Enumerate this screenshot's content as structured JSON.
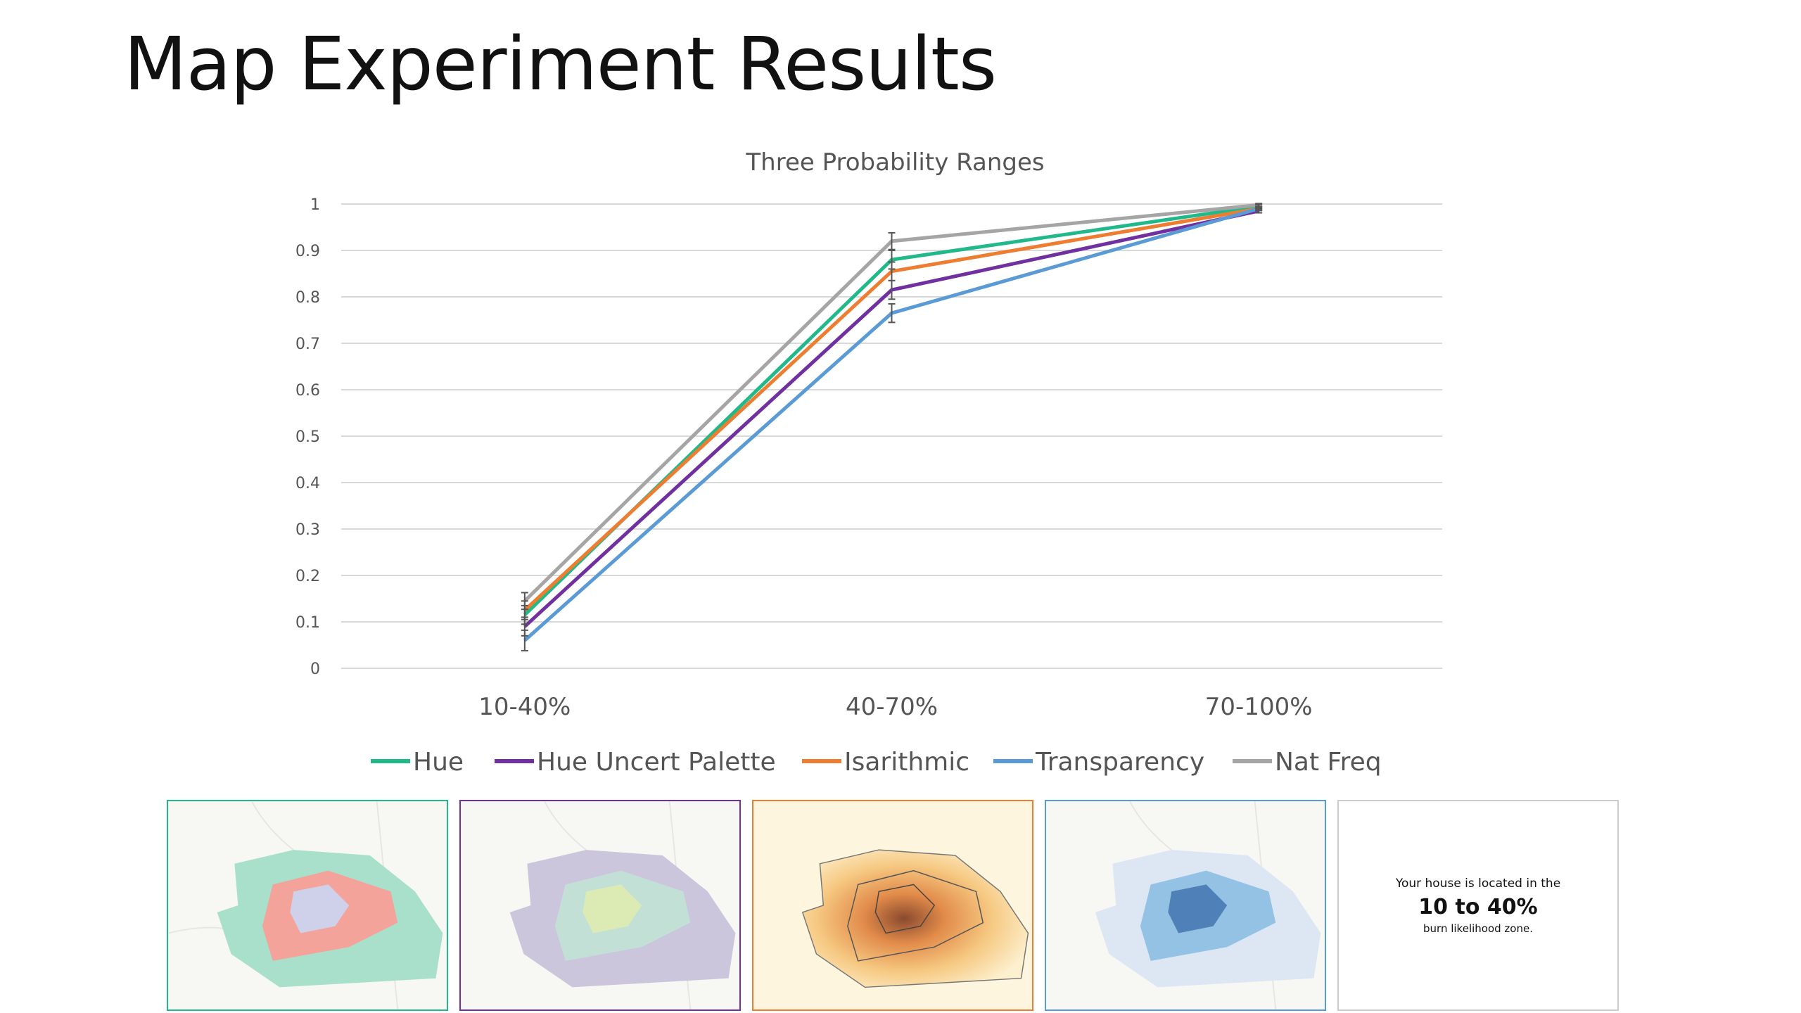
{
  "slide": {
    "title": "Map Experiment Results"
  },
  "chart_data": {
    "type": "line",
    "title": "Three Probability Ranges",
    "categories": [
      "10-40%",
      "40-70%",
      "70-100%"
    ],
    "ylim": [
      0,
      1
    ],
    "yticks": [
      "0",
      "0.1",
      "0.2",
      "0.3",
      "0.4",
      "0.5",
      "0.6",
      "0.7",
      "0.8",
      "0.9",
      "1"
    ],
    "grid": true,
    "legend_position": "bottom",
    "series": [
      {
        "name": "Hue",
        "color": "#21b98a",
        "values": [
          0.115,
          0.88,
          0.995
        ],
        "error": [
          0.02,
          0.02,
          0.004
        ]
      },
      {
        "name": "Hue Uncert Palette",
        "color": "#7030a0",
        "values": [
          0.09,
          0.815,
          0.985
        ],
        "error": [
          0.02,
          0.02,
          0.004
        ]
      },
      {
        "name": "Isarithmic",
        "color": "#ed7d31",
        "values": [
          0.125,
          0.855,
          0.99
        ],
        "error": [
          0.02,
          0.02,
          0.004
        ]
      },
      {
        "name": "Transparency",
        "color": "#5b9bd5",
        "values": [
          0.06,
          0.765,
          0.99
        ],
        "error": [
          0.022,
          0.02,
          0.004
        ]
      },
      {
        "name": "Nat Freq",
        "color": "#a5a5a5",
        "values": [
          0.145,
          0.92,
          0.998
        ],
        "error": [
          0.018,
          0.018,
          0.003
        ]
      }
    ]
  },
  "panels": [
    {
      "name": "hue",
      "border": "#21b98a"
    },
    {
      "name": "hue-uncert-palette",
      "border": "#7030a0"
    },
    {
      "name": "isarithmic",
      "border": "#ed7d31"
    },
    {
      "name": "transparency",
      "border": "#5b9bd5"
    },
    {
      "name": "nat-freq",
      "border": "#cccccc",
      "text_line1": "Your house is located in the",
      "text_line2": "10 to 40%",
      "text_line3": "burn likelihood zone."
    }
  ]
}
